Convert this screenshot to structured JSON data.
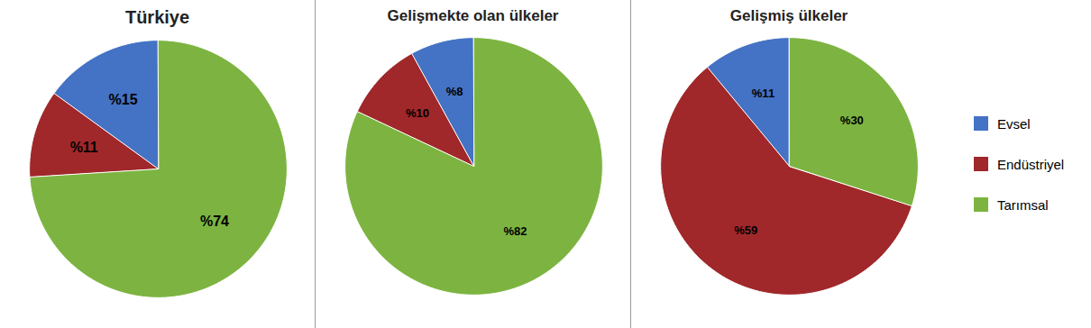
{
  "chart_data": [
    {
      "type": "pie",
      "title": "Türkiye",
      "categories": [
        "Evsel",
        "Endüstriyel",
        "Tarımsal"
      ],
      "values": [
        15,
        11,
        74
      ],
      "value_labels": [
        "%15",
        "%11",
        "%74"
      ],
      "colors": [
        "#4472c4",
        "#a0282a",
        "#7db441"
      ],
      "data_labels": true,
      "legend": "right"
    },
    {
      "type": "pie",
      "title": "Gelişmekte olan ülkeler",
      "categories": [
        "Evsel",
        "Endüstriyel",
        "Tarımsal"
      ],
      "values": [
        8,
        10,
        82
      ],
      "value_labels": [
        "%8",
        "%10",
        "%82"
      ],
      "colors": [
        "#4472c4",
        "#a0282a",
        "#7db441"
      ],
      "data_labels": true,
      "legend": "right"
    },
    {
      "type": "pie",
      "title": "Gelişmiş ülkeler",
      "categories": [
        "Evsel",
        "Endüstriyel",
        "Tarımsal"
      ],
      "values": [
        11,
        59,
        30
      ],
      "value_labels": [
        "%11",
        "%59",
        "%30"
      ],
      "colors": [
        "#4472c4",
        "#a0282a",
        "#7db441"
      ],
      "data_labels": true,
      "legend": "right"
    }
  ]
}
